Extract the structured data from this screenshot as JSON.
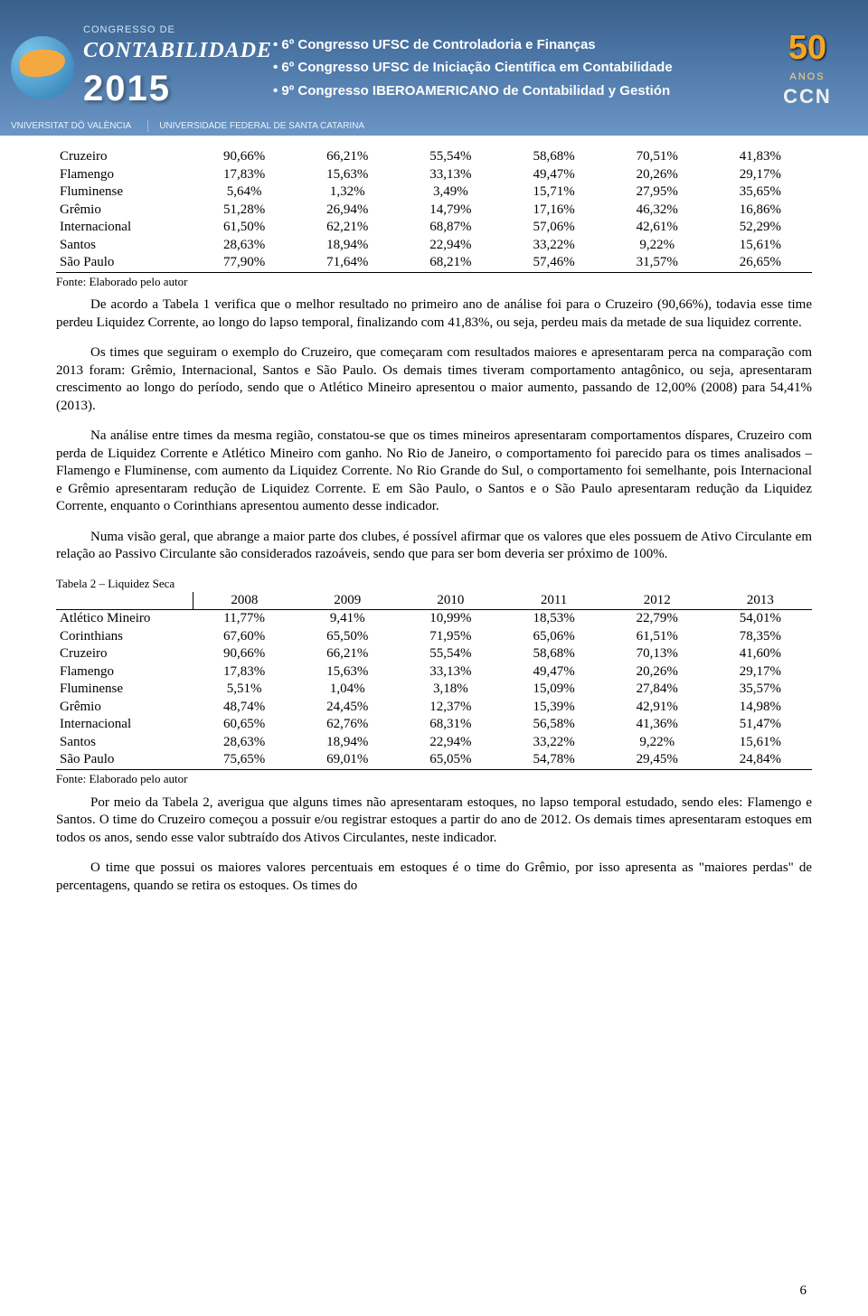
{
  "banner": {
    "congresso_de": "CONGRESSO DE",
    "contabilidade": "CONTABILIDADE",
    "year": "2015",
    "bullets": [
      "6º Congresso UFSC de Controladoria e Finanças",
      "6º Congresso UFSC de Iniciação Científica em Contabilidade",
      "9º Congresso IBEROAMERICANO de Contabilidad y Gestión"
    ],
    "anniversary": {
      "number": "50",
      "anos": "ANOS",
      "ccn": "CCN"
    },
    "partners": [
      "VNIVERSITAT DÖ VALÈNCIA",
      "UNIVERSIDADE FEDERAL DE SANTA CATARINA"
    ]
  },
  "table1": {
    "rows": [
      [
        "Cruzeiro",
        "90,66%",
        "66,21%",
        "55,54%",
        "58,68%",
        "70,51%",
        "41,83%"
      ],
      [
        "Flamengo",
        "17,83%",
        "15,63%",
        "33,13%",
        "49,47%",
        "20,26%",
        "29,17%"
      ],
      [
        "Fluminense",
        "5,64%",
        "1,32%",
        "3,49%",
        "15,71%",
        "27,95%",
        "35,65%"
      ],
      [
        "Grêmio",
        "51,28%",
        "26,94%",
        "14,79%",
        "17,16%",
        "46,32%",
        "16,86%"
      ],
      [
        "Internacional",
        "61,50%",
        "62,21%",
        "68,87%",
        "57,06%",
        "42,61%",
        "52,29%"
      ],
      [
        "Santos",
        "28,63%",
        "18,94%",
        "22,94%",
        "33,22%",
        "9,22%",
        "15,61%"
      ],
      [
        "São Paulo",
        "77,90%",
        "71,64%",
        "68,21%",
        "57,46%",
        "31,57%",
        "26,65%"
      ]
    ],
    "source": "Fonte: Elaborado pelo autor"
  },
  "paragraphs": {
    "p1": "De acordo a Tabela 1 verifica que o melhor resultado no primeiro ano de análise foi para o Cruzeiro (90,66%), todavia esse time perdeu Liquidez Corrente, ao longo do lapso temporal, finalizando com 41,83%, ou seja, perdeu mais da metade de sua liquidez corrente.",
    "p2": "Os times que seguiram o exemplo do Cruzeiro, que começaram com resultados maiores e apresentaram perca na comparação com 2013 foram: Grêmio, Internacional, Santos e São Paulo. Os demais times tiveram comportamento antagônico, ou seja, apresentaram crescimento ao longo do período, sendo que o Atlético Mineiro apresentou o maior aumento, passando de 12,00% (2008) para 54,41% (2013).",
    "p3": "Na análise entre times da mesma região, constatou-se que os times mineiros apresentaram comportamentos díspares, Cruzeiro com perda de Liquidez Corrente e Atlético Mineiro com ganho. No Rio de Janeiro, o comportamento foi parecido para os times analisados – Flamengo e Fluminense, com aumento da Liquidez Corrente. No Rio Grande do Sul, o comportamento foi semelhante, pois Internacional e Grêmio apresentaram redução de Liquidez Corrente. E em São Paulo, o Santos e o São Paulo apresentaram redução da Liquidez Corrente, enquanto o Corinthians apresentou aumento desse indicador.",
    "p4": "Numa visão geral, que abrange a maior parte dos clubes, é possível afirmar que os valores que eles possuem de Ativo Circulante em relação ao Passivo Circulante são considerados razoáveis, sendo que para ser bom deveria ser próximo de 100%."
  },
  "table2": {
    "caption": "Tabela 2 – Liquidez Seca",
    "headers": [
      "",
      "2008",
      "2009",
      "2010",
      "2011",
      "2012",
      "2013"
    ],
    "rows": [
      [
        "Atlético Mineiro",
        "11,77%",
        "9,41%",
        "10,99%",
        "18,53%",
        "22,79%",
        "54,01%"
      ],
      [
        "Corinthians",
        "67,60%",
        "65,50%",
        "71,95%",
        "65,06%",
        "61,51%",
        "78,35%"
      ],
      [
        "Cruzeiro",
        "90,66%",
        "66,21%",
        "55,54%",
        "58,68%",
        "70,13%",
        "41,60%"
      ],
      [
        "Flamengo",
        "17,83%",
        "15,63%",
        "33,13%",
        "49,47%",
        "20,26%",
        "29,17%"
      ],
      [
        "Fluminense",
        "5,51%",
        "1,04%",
        "3,18%",
        "15,09%",
        "27,84%",
        "35,57%"
      ],
      [
        "Grêmio",
        "48,74%",
        "24,45%",
        "12,37%",
        "15,39%",
        "42,91%",
        "14,98%"
      ],
      [
        "Internacional",
        "60,65%",
        "62,76%",
        "68,31%",
        "56,58%",
        "41,36%",
        "51,47%"
      ],
      [
        "Santos",
        "28,63%",
        "18,94%",
        "22,94%",
        "33,22%",
        "9,22%",
        "15,61%"
      ],
      [
        "São Paulo",
        "75,65%",
        "69,01%",
        "65,05%",
        "54,78%",
        "29,45%",
        "24,84%"
      ]
    ],
    "source": "Fonte: Elaborado pelo autor"
  },
  "paragraphs2": {
    "p5": "Por meio da Tabela 2, averigua que alguns times não apresentaram estoques, no lapso temporal estudado, sendo eles: Flamengo e Santos. O time do Cruzeiro começou a possuir e/ou registrar estoques a partir do ano de 2012. Os demais times apresentaram estoques em todos os anos, sendo esse valor subtraído dos Ativos Circulantes, neste indicador.",
    "p6": "O time que possui os maiores valores percentuais em estoques é o time do Grêmio, por isso apresenta as \"maiores perdas\" de percentagens, quando se retira os estoques. Os times do"
  },
  "page_number": "6"
}
